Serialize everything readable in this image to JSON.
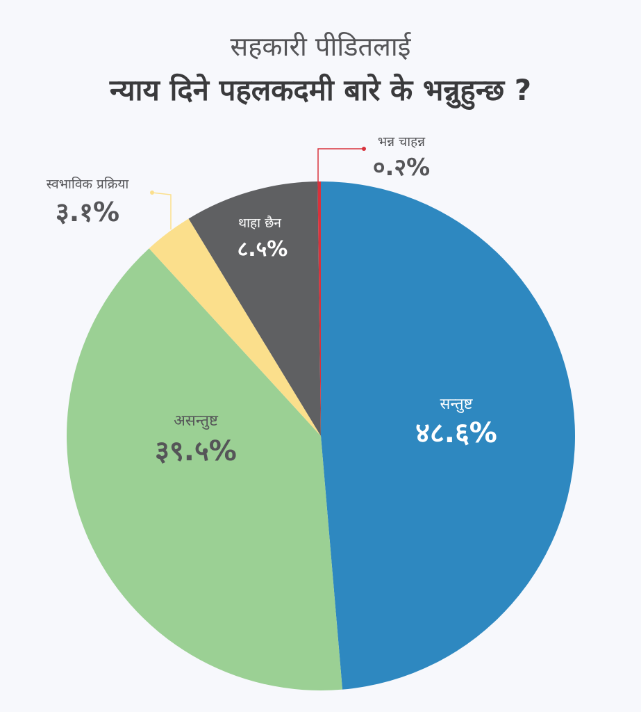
{
  "title": {
    "line1": "सहकारी पीडितलाई",
    "line2": "न्याय दिने पहलकदमी बारे के भन्नुहुन्छ ?"
  },
  "chart_data": {
    "type": "pie",
    "slices": [
      {
        "name": "सन्तुष्ट",
        "value": 48.6,
        "label": "४८.६%",
        "color": "#2e88c0"
      },
      {
        "name": "असन्तुष्ट",
        "value": 39.5,
        "label": "३९.५%",
        "color": "#9bd094"
      },
      {
        "name": "स्वभाविक प्रक्रिया",
        "value": 3.1,
        "label": "३.१%",
        "color": "#fbdf8c"
      },
      {
        "name": "थाहा छैन",
        "value": 8.5,
        "label": "८.५%",
        "color": "#5f6062"
      },
      {
        "name": "भन्न चाहन्न",
        "value": 0.2,
        "label": "०.२%",
        "color": "#d8323c"
      }
    ],
    "start": "12 o'clock",
    "direction": "clockwise"
  }
}
